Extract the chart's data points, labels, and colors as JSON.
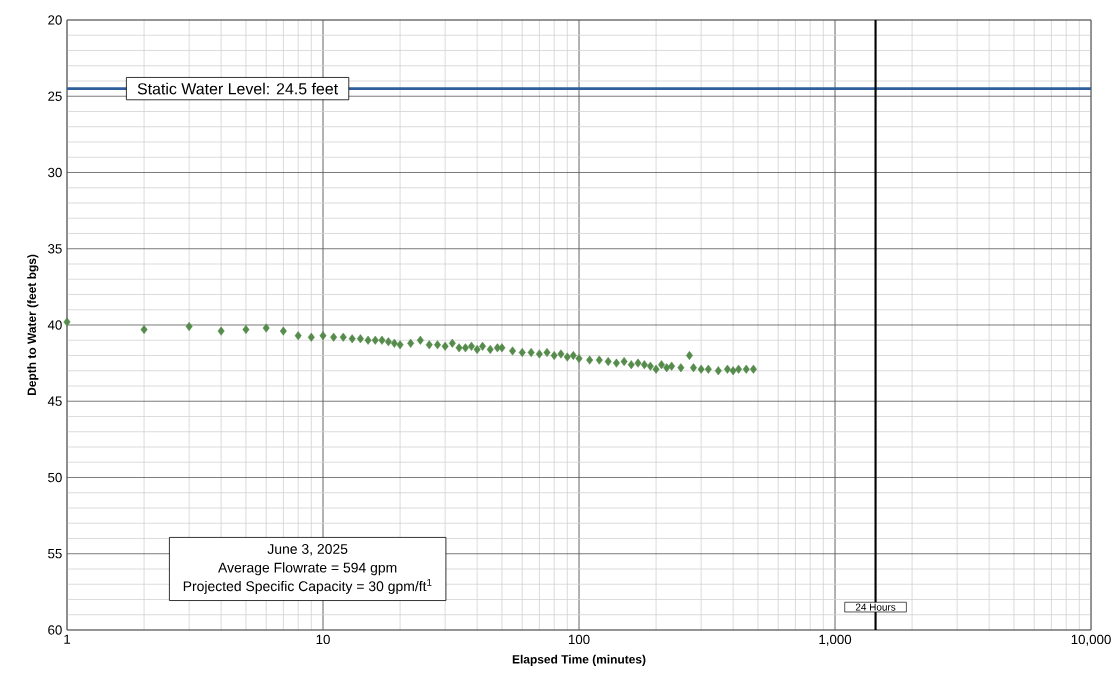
{
  "chart_data": {
    "type": "scatter",
    "xlabel": "Elapsed Time (minutes)",
    "ylabel": "Depth to Water (feet bgs)",
    "log": "x",
    "grid": true,
    "marker": "diamond",
    "color": "#558b4b",
    "xlim": [
      1,
      10000
    ],
    "ylim": [
      60,
      20
    ],
    "xticks": [
      1,
      10,
      100,
      {
        "value": 1000,
        "label": "1,000"
      },
      {
        "value": 10000,
        "label": "10,000"
      }
    ],
    "yticks": [
      20,
      25,
      30,
      35,
      40,
      45,
      50,
      55,
      60
    ],
    "x": [
      1,
      2,
      3,
      4,
      5,
      6,
      7,
      8,
      9,
      10,
      11,
      12,
      13,
      14,
      15,
      16,
      17,
      18,
      19,
      20,
      22,
      24,
      26,
      28,
      30,
      32,
      34,
      36,
      38,
      40,
      42,
      45,
      48,
      50,
      55,
      60,
      65,
      70,
      75,
      80,
      85,
      90,
      95,
      100,
      110,
      120,
      130,
      140,
      150,
      160,
      170,
      180,
      190,
      200,
      210,
      220,
      230,
      250,
      270,
      280,
      300,
      320,
      350,
      380,
      400,
      420,
      450,
      480
    ],
    "values": [
      39.8,
      40.3,
      40.1,
      40.4,
      40.3,
      40.2,
      40.4,
      40.7,
      40.8,
      40.7,
      40.8,
      40.8,
      40.9,
      40.9,
      41.0,
      41.0,
      41.0,
      41.1,
      41.2,
      41.3,
      41.2,
      41.0,
      41.3,
      41.3,
      41.4,
      41.2,
      41.5,
      41.5,
      41.4,
      41.6,
      41.4,
      41.6,
      41.5,
      41.5,
      41.7,
      41.8,
      41.8,
      41.9,
      41.8,
      42.0,
      41.9,
      42.1,
      42.0,
      42.2,
      42.3,
      42.3,
      42.4,
      42.5,
      42.4,
      42.6,
      42.5,
      42.6,
      42.7,
      42.9,
      42.6,
      42.8,
      42.7,
      42.8,
      42.0,
      42.8,
      42.9,
      42.9,
      43.0,
      42.9,
      43.0,
      42.9,
      42.9,
      42.9
    ],
    "ref_lines": [
      {
        "axis": "y",
        "value": 24.5,
        "label": "Static Water Level: 24.5 feet",
        "color": "#2e5f9a"
      },
      {
        "axis": "x",
        "value": 1440,
        "label": "24 Hours",
        "color": "#000000"
      }
    ],
    "annotations": [
      "June 3, 2025",
      "Average Flowrate = 594 gpm",
      "Projected Specific Capacity = 30 gpm/ft$^{1}$"
    ]
  }
}
